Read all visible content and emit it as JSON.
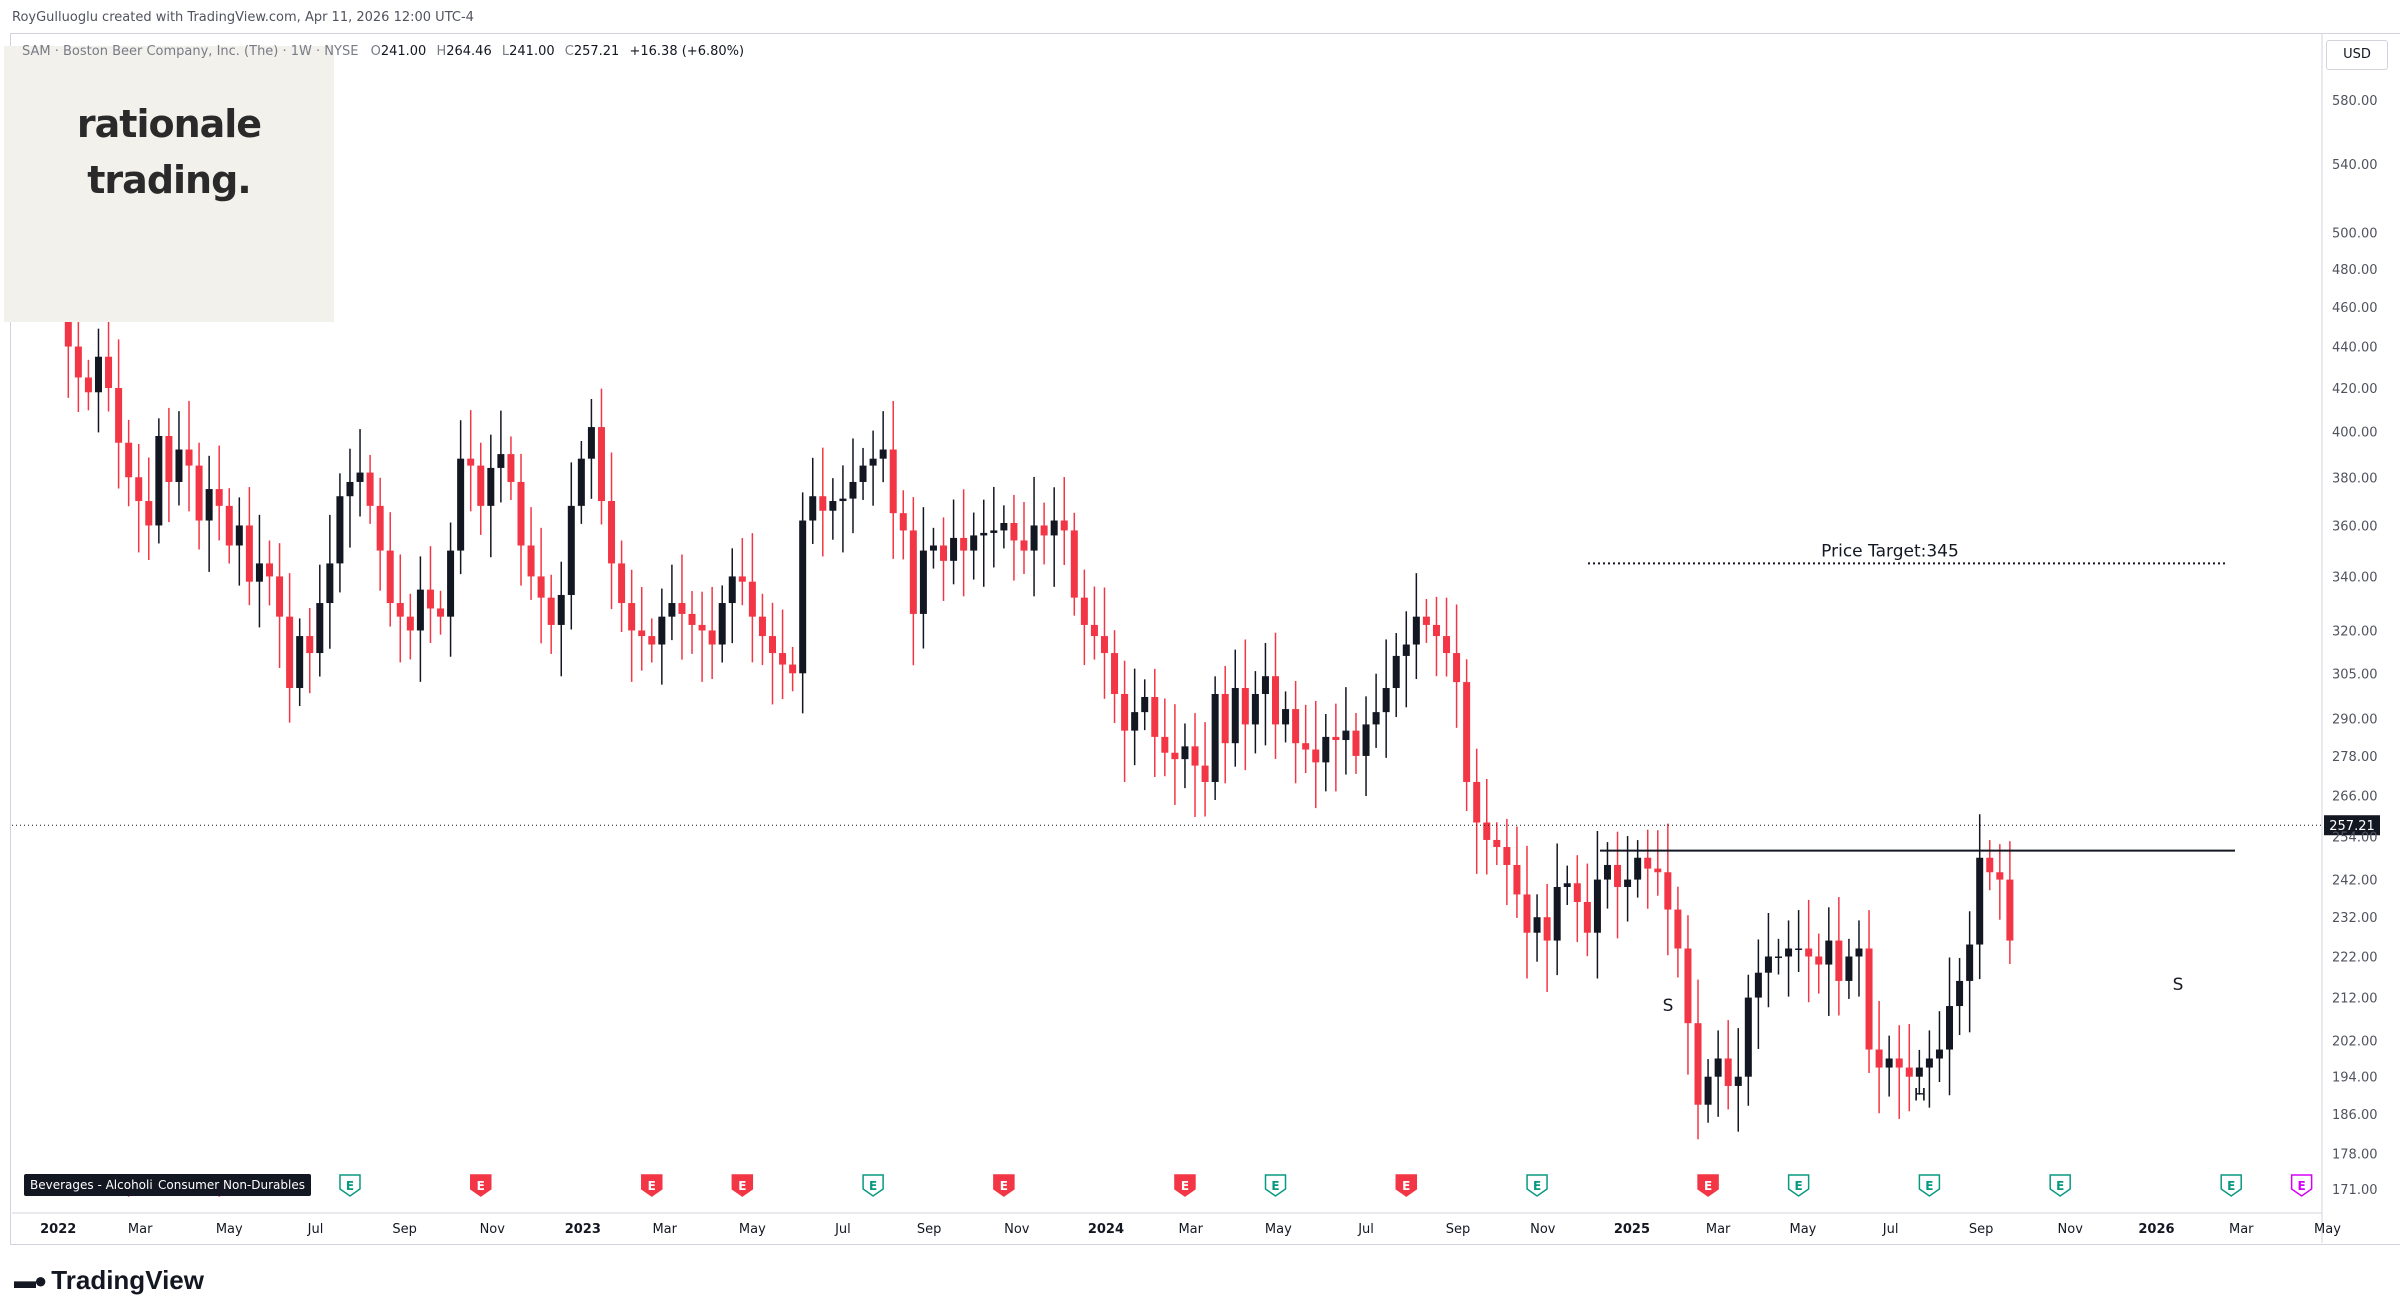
{
  "header": {
    "attribution": "RoyGulluoglu created with TradingView.com, Apr 11, 2026 12:00 UTC-4"
  },
  "symbol": {
    "name": "SAM · Boston Beer Company, Inc. (The) · 1W · NYSE",
    "open_label": "O",
    "open": "241.00",
    "high_label": "H",
    "high": "264.46",
    "low_label": "L",
    "low": "241.00",
    "close_label": "C",
    "close": "257.21",
    "change": "+16.38 (+6.80%)"
  },
  "logo": {
    "line1": "rationale",
    "line2": "trading."
  },
  "currency": "USD",
  "footer": {
    "brand": "TradingView"
  },
  "categories": [
    "Beverages - Alcoholic",
    "Consumer Non-Durables"
  ],
  "chart_data": {
    "type": "candlestick",
    "title": "",
    "price_scale": "log",
    "y_ticks": [
      171,
      178,
      186,
      194,
      202,
      212,
      222,
      232,
      242,
      254,
      266,
      278,
      290,
      305,
      320,
      340,
      360,
      380,
      400,
      420,
      440,
      460,
      480,
      500,
      540,
      580
    ],
    "y_tick_labels": [
      "171.00",
      "178.00",
      "186.00",
      "194.00",
      "202.00",
      "212.00",
      "222.00",
      "232.00",
      "242.00",
      "254.00",
      "266.00",
      "278.00",
      "290.00",
      "305.00",
      "320.00",
      "340.00",
      "360.00",
      "380.00",
      "400.00",
      "420.00",
      "440.00",
      "460.00",
      "480.00",
      "500.00",
      "540.00",
      "580.00"
    ],
    "x_ticks": [
      {
        "label": "2022",
        "date": "2022-01-03",
        "bold": true
      },
      {
        "label": "Mar",
        "date": "2022-03-01"
      },
      {
        "label": "May",
        "date": "2022-05-02"
      },
      {
        "label": "Jul",
        "date": "2022-07-01"
      },
      {
        "label": "Sep",
        "date": "2022-09-01"
      },
      {
        "label": "Nov",
        "date": "2022-11-01"
      },
      {
        "label": "2023",
        "date": "2023-01-03",
        "bold": true
      },
      {
        "label": "Mar",
        "date": "2023-03-01"
      },
      {
        "label": "May",
        "date": "2023-05-01"
      },
      {
        "label": "Jul",
        "date": "2023-07-03"
      },
      {
        "label": "Sep",
        "date": "2023-09-01"
      },
      {
        "label": "Nov",
        "date": "2023-11-01"
      },
      {
        "label": "2024",
        "date": "2024-01-02",
        "bold": true
      },
      {
        "label": "Mar",
        "date": "2024-03-01"
      },
      {
        "label": "May",
        "date": "2024-05-01"
      },
      {
        "label": "Jul",
        "date": "2024-07-01"
      },
      {
        "label": "Sep",
        "date": "2024-09-03"
      },
      {
        "label": "Nov",
        "date": "2024-11-01"
      },
      {
        "label": "2025",
        "date": "2025-01-02",
        "bold": true
      },
      {
        "label": "Mar",
        "date": "2025-03-03"
      },
      {
        "label": "May",
        "date": "2025-05-01"
      },
      {
        "label": "Jul",
        "date": "2025-07-01"
      },
      {
        "label": "Sep",
        "date": "2025-09-02"
      },
      {
        "label": "Nov",
        "date": "2025-11-03"
      },
      {
        "label": "2026",
        "date": "2026-01-02",
        "bold": true
      },
      {
        "label": "Mar",
        "date": "2026-03-02"
      },
      {
        "label": "May",
        "date": "2026-05-01"
      }
    ],
    "start_date": "2021-12-06",
    "closes": [
      520,
      540,
      505,
      500,
      470,
      440,
      425,
      418,
      435,
      420,
      395,
      380,
      370,
      360,
      398,
      378,
      392,
      385,
      362,
      375,
      368,
      352,
      360,
      338,
      345,
      340,
      325,
      300,
      318,
      312,
      330,
      345,
      372,
      378,
      382,
      368,
      350,
      330,
      325,
      320,
      335,
      328,
      325,
      350,
      388,
      385,
      368,
      384,
      390,
      378,
      352,
      340,
      332,
      322,
      333,
      368,
      388,
      402,
      370,
      345,
      330,
      320,
      318,
      315,
      325,
      330,
      326,
      322,
      320,
      315,
      330,
      340,
      338,
      325,
      318,
      312,
      308,
      305,
      362,
      372,
      366,
      370,
      371,
      378,
      385,
      388,
      392,
      365,
      358,
      326,
      350,
      352,
      346,
      355,
      350,
      356,
      357,
      358,
      361,
      354,
      350,
      360,
      356,
      362,
      358,
      332,
      322,
      318,
      312,
      298,
      286,
      292,
      297,
      284,
      279,
      277,
      281,
      275,
      270,
      298,
      282,
      300,
      288,
      298,
      304,
      288,
      293,
      282,
      280,
      276,
      284,
      283,
      286,
      278,
      288,
      292,
      300,
      311,
      315,
      325,
      322,
      318,
      312,
      302,
      270,
      258,
      253,
      251,
      246,
      238,
      228,
      232,
      226,
      240,
      241,
      236,
      228,
      242,
      246,
      240,
      242,
      248,
      245,
      244,
      234,
      224,
      206,
      188,
      194,
      198,
      192,
      194,
      212,
      218,
      222,
      222,
      224,
      224,
      222,
      220,
      226,
      216,
      222,
      224,
      200,
      196,
      198,
      196,
      194,
      196,
      198,
      200,
      210,
      216,
      225,
      248,
      244,
      242,
      226,
      232,
      228,
      236,
      240,
      257.21
    ],
    "candles_visible": 199,
    "last_price": "257.21",
    "annotations": [
      {
        "text": "Price Target:345",
        "price": 345
      },
      {
        "text": "S",
        "price": 210
      },
      {
        "text": "H",
        "price": 190
      },
      {
        "text": "S",
        "price": 215
      }
    ],
    "neckline_price": 250,
    "price_target": 345,
    "earnings_markers": [
      {
        "date": "2022-02-21",
        "kind": "neg"
      },
      {
        "date": "2022-04-25",
        "kind": "neg"
      },
      {
        "date": "2022-07-25",
        "kind": "pos"
      },
      {
        "date": "2022-10-24",
        "kind": "neg"
      },
      {
        "date": "2023-02-20",
        "kind": "neg"
      },
      {
        "date": "2023-04-24",
        "kind": "neg"
      },
      {
        "date": "2023-07-24",
        "kind": "pos"
      },
      {
        "date": "2023-10-23",
        "kind": "neg"
      },
      {
        "date": "2024-02-26",
        "kind": "neg"
      },
      {
        "date": "2024-04-29",
        "kind": "pos"
      },
      {
        "date": "2024-07-29",
        "kind": "neg"
      },
      {
        "date": "2024-10-28",
        "kind": "pos"
      },
      {
        "date": "2025-02-24",
        "kind": "neg"
      },
      {
        "date": "2025-04-28",
        "kind": "pos"
      },
      {
        "date": "2025-07-28",
        "kind": "pos"
      },
      {
        "date": "2025-10-27",
        "kind": "pos"
      },
      {
        "date": "2026-02-23",
        "kind": "pos"
      },
      {
        "date": "2026-04-13",
        "kind": "mixed"
      }
    ],
    "colors": {
      "up": "#131722",
      "down": "#f23645",
      "earn_neg": "#f23645",
      "earn_pos": "#089981",
      "earn_mixed": "#d500f9"
    }
  }
}
